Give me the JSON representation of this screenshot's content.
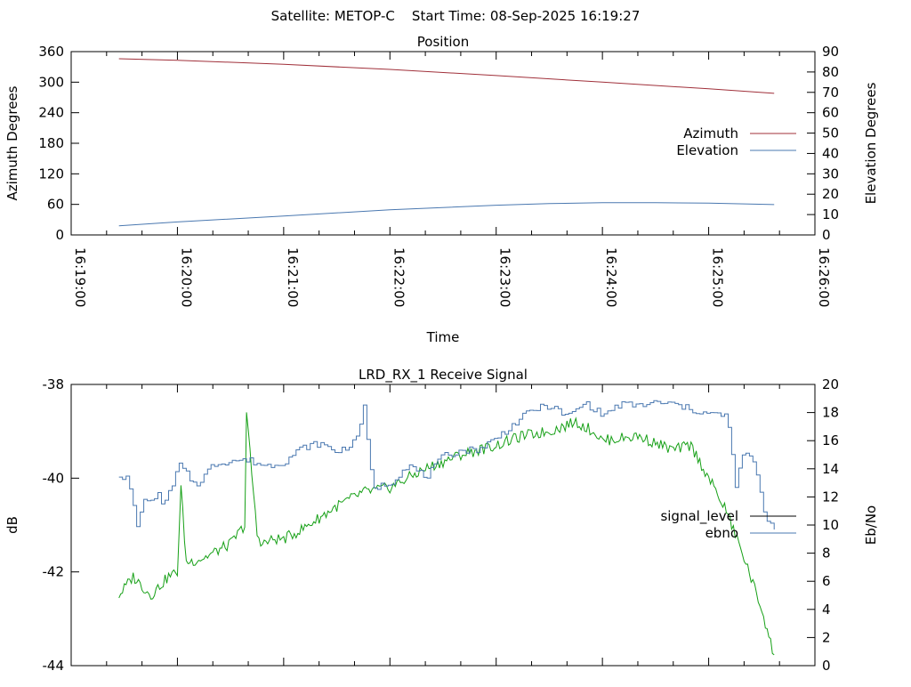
{
  "page_title": "Satellite: METOP-C    Start Time: 08-Sep-2025 16:19:27",
  "colors": {
    "azimuth": "#a0303a",
    "elevation": "#4a78b0",
    "signal_level": "#000000",
    "ebno": "#4a78b0",
    "signal_trace": "#16a016",
    "axis": "#000000"
  },
  "chart_data": [
    {
      "type": "line",
      "title": "Position",
      "xlabel": "Time",
      "ylabel": "Azimuth Degrees",
      "y2label": "Elevation Degrees",
      "xlim": [
        "16:19:00",
        "16:26:00"
      ],
      "xticks": [
        "16:19:00",
        "16:20:00",
        "16:21:00",
        "16:22:00",
        "16:23:00",
        "16:24:00",
        "16:25:00",
        "16:26:00"
      ],
      "ylim": [
        0,
        360
      ],
      "yticks": [
        0,
        60,
        120,
        180,
        240,
        300,
        360
      ],
      "y2lim": [
        0,
        90
      ],
      "y2ticks": [
        0,
        10,
        20,
        30,
        40,
        50,
        60,
        70,
        80,
        90
      ],
      "legend": "right",
      "grid": false,
      "series": [
        {
          "name": "Azimuth",
          "axis": "y",
          "x": [
            "16:19:27",
            "16:20:00",
            "16:21:00",
            "16:22:00",
            "16:23:00",
            "16:24:00",
            "16:25:00",
            "16:25:37"
          ],
          "values": [
            346,
            343,
            335,
            325,
            313,
            300,
            287,
            278
          ]
        },
        {
          "name": "Elevation",
          "axis": "y2",
          "x": [
            "16:19:27",
            "16:20:00",
            "16:21:00",
            "16:22:00",
            "16:23:00",
            "16:23:30",
            "16:24:00",
            "16:24:30",
            "16:25:00",
            "16:25:37"
          ],
          "values": [
            4.5,
            6.4,
            9.3,
            12.3,
            14.6,
            15.4,
            15.8,
            15.8,
            15.6,
            14.9
          ]
        }
      ]
    },
    {
      "type": "line",
      "title": "LRD_RX_1 Receive Signal",
      "xlabel": "",
      "ylabel": "dB",
      "y2label": "Eb/No",
      "xlim": [
        "16:19:00",
        "16:26:00"
      ],
      "ylim": [
        -44,
        -38
      ],
      "yticks": [
        -44,
        -42,
        -40,
        -38
      ],
      "y2lim": [
        0,
        20
      ],
      "y2ticks": [
        0,
        2,
        4,
        6,
        8,
        10,
        12,
        14,
        16,
        18,
        20
      ],
      "legend": "right",
      "grid": false,
      "series": [
        {
          "name": "signal_level",
          "axis": "y",
          "x": [
            "16:19:27",
            "16:19:35",
            "16:19:45",
            "16:19:55",
            "16:20:00",
            "16:20:02",
            "16:20:05",
            "16:20:15",
            "16:20:30",
            "16:20:38",
            "16:20:39",
            "16:20:45",
            "16:20:48",
            "16:20:55",
            "16:21:00",
            "16:21:10",
            "16:21:30",
            "16:21:45",
            "16:22:00",
            "16:22:20",
            "16:22:40",
            "16:23:00",
            "16:23:15",
            "16:23:30",
            "16:23:45",
            "16:23:55",
            "16:24:00",
            "16:24:20",
            "16:24:40",
            "16:24:50",
            "16:25:00",
            "16:25:10",
            "16:25:20",
            "16:25:30",
            "16:25:37"
          ],
          "values": [
            -42.5,
            -42.1,
            -42.5,
            -42.1,
            -42.0,
            -40.2,
            -41.8,
            -41.7,
            -41.4,
            -41.0,
            -38.6,
            -41.2,
            -41.4,
            -41.3,
            -41.3,
            -41.1,
            -40.6,
            -40.3,
            -40.2,
            -39.8,
            -39.5,
            -39.3,
            -39.1,
            -39.0,
            -38.8,
            -39.0,
            -39.2,
            -39.1,
            -39.4,
            -39.3,
            -40.0,
            -40.7,
            -41.7,
            -42.8,
            -43.8
          ]
        },
        {
          "name": "ebno",
          "axis": "y2",
          "x": [
            "16:19:27",
            "16:19:32",
            "16:19:38",
            "16:19:40",
            "16:19:44",
            "16:19:48",
            "16:19:52",
            "16:19:58",
            "16:20:00",
            "16:20:10",
            "16:20:20",
            "16:20:30",
            "16:20:40",
            "16:20:50",
            "16:21:00",
            "16:21:10",
            "16:21:20",
            "16:21:30",
            "16:21:40",
            "16:21:45",
            "16:21:50",
            "16:22:00",
            "16:22:10",
            "16:22:20",
            "16:22:30",
            "16:22:40",
            "16:22:50",
            "16:23:00",
            "16:23:10",
            "16:23:20",
            "16:23:30",
            "16:23:40",
            "16:23:50",
            "16:24:00",
            "16:24:10",
            "16:24:20",
            "16:24:30",
            "16:24:40",
            "16:24:50",
            "16:25:00",
            "16:25:10",
            "16:25:15",
            "16:25:20",
            "16:25:25",
            "16:25:32",
            "16:25:37"
          ],
          "values": [
            13.6,
            13.2,
            9.3,
            12.3,
            11.3,
            12.3,
            11.5,
            13.0,
            14.4,
            12.8,
            14.3,
            14.6,
            14.6,
            14.2,
            14.5,
            15.5,
            15.8,
            15.2,
            15.9,
            18.3,
            12.6,
            13.0,
            14.3,
            13.4,
            14.9,
            15.3,
            15.4,
            16.2,
            17.2,
            18.2,
            18.5,
            17.7,
            18.7,
            17.8,
            18.6,
            18.5,
            18.7,
            18.6,
            18.2,
            17.9,
            17.8,
            12.9,
            15.3,
            14.5,
            10.5,
            9.8
          ]
        }
      ]
    }
  ]
}
